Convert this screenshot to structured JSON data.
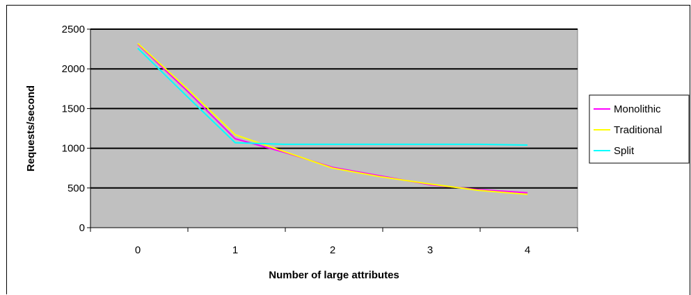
{
  "chart_data": {
    "type": "line",
    "title": "",
    "xlabel": "Number of large attributes",
    "ylabel": "Requests/second",
    "categories": [
      "0",
      "1",
      "2",
      "3",
      "4"
    ],
    "ylim": [
      0,
      2500
    ],
    "yticks": [
      0,
      500,
      1000,
      1500,
      2000,
      2500
    ],
    "ytick_labels": [
      "0",
      "500",
      "1000",
      "1500",
      "2000",
      "2500"
    ],
    "grid": "horizontal",
    "legend_position": "right",
    "plot_background": "#c0c0c0",
    "series": [
      {
        "name": "Monolithic",
        "color": "#ff00ff",
        "x": [
          0,
          0.5,
          1,
          1.5,
          2,
          2.5,
          3,
          3.5,
          4
        ],
        "values": [
          2310,
          1730,
          1120,
          950,
          760,
          650,
          540,
          480,
          440
        ]
      },
      {
        "name": "Traditional",
        "color": "#ffff00",
        "x": [
          0,
          0.5,
          1,
          1.5,
          2,
          2.5,
          3,
          3.5,
          4
        ],
        "values": [
          2320,
          1760,
          1170,
          960,
          750,
          640,
          550,
          470,
          420
        ]
      },
      {
        "name": "Split",
        "color": "#00ffff",
        "x": [
          0,
          0.5,
          1,
          1.5,
          2,
          2.5,
          3,
          3.5,
          4
        ],
        "values": [
          2260,
          1660,
          1070,
          1050,
          1050,
          1050,
          1050,
          1050,
          1040
        ]
      }
    ]
  }
}
